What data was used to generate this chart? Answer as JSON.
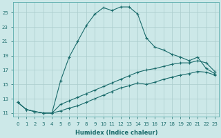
{
  "xlabel": "Humidex (Indice chaleur)",
  "bg_color": "#cce8e8",
  "grid_color": "#aacccc",
  "line_color": "#1a6b6b",
  "xlim": [
    -0.5,
    23.5
  ],
  "ylim": [
    10.5,
    26.5
  ],
  "yticks": [
    11,
    13,
    15,
    17,
    19,
    21,
    23,
    25
  ],
  "xticks": [
    0,
    1,
    2,
    3,
    4,
    5,
    6,
    7,
    8,
    9,
    10,
    11,
    12,
    13,
    14,
    15,
    16,
    17,
    18,
    19,
    20,
    21,
    22,
    23
  ],
  "series1_x": [
    0,
    1,
    2,
    3,
    4,
    5,
    6,
    7,
    8,
    9,
    10,
    11,
    12,
    13,
    14,
    15,
    16,
    17,
    18,
    19,
    20,
    21,
    22,
    23
  ],
  "series1_y": [
    12.5,
    11.5,
    11.2,
    11.0,
    11.0,
    15.5,
    18.8,
    21.0,
    23.2,
    24.8,
    25.7,
    25.3,
    25.8,
    25.8,
    24.8,
    21.5,
    20.2,
    19.8,
    19.2,
    18.8,
    18.3,
    18.8,
    17.2,
    16.5
  ],
  "series2_x": [
    0,
    1,
    2,
    3,
    4,
    5,
    6,
    7,
    8,
    9,
    10,
    11,
    12,
    13,
    14,
    15,
    16,
    17,
    18,
    19,
    20,
    21,
    22,
    23
  ],
  "series2_y": [
    12.5,
    11.5,
    11.2,
    11.0,
    11.0,
    12.2,
    12.7,
    13.2,
    13.7,
    14.2,
    14.7,
    15.2,
    15.7,
    16.2,
    16.7,
    17.0,
    17.2,
    17.5,
    17.8,
    18.0,
    18.0,
    18.3,
    18.0,
    16.8
  ],
  "series3_x": [
    0,
    1,
    2,
    3,
    4,
    5,
    6,
    7,
    8,
    9,
    10,
    11,
    12,
    13,
    14,
    15,
    16,
    17,
    18,
    19,
    20,
    21,
    22,
    23
  ],
  "series3_y": [
    12.5,
    11.5,
    11.2,
    11.0,
    11.0,
    11.3,
    11.7,
    12.0,
    12.5,
    13.0,
    13.5,
    14.0,
    14.5,
    14.8,
    15.2,
    15.0,
    15.3,
    15.7,
    16.0,
    16.3,
    16.5,
    16.8,
    16.7,
    16.3
  ]
}
